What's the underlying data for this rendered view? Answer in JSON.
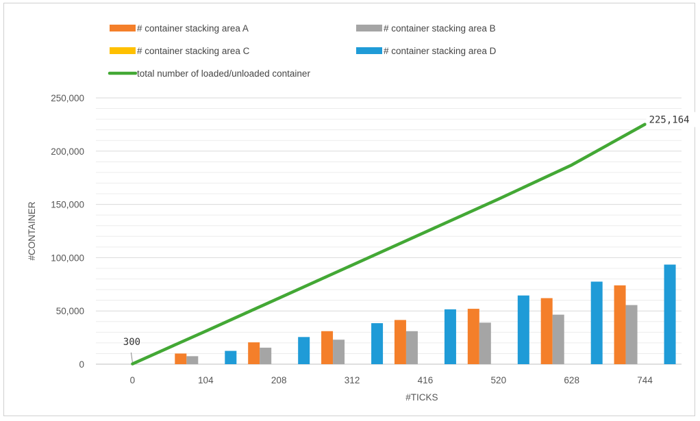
{
  "chart_data": {
    "type": "bar",
    "xlabel": "#TICKS",
    "ylabel": "#CONTAINER",
    "ylim": [
      0,
      250000
    ],
    "ytick_step": 50000,
    "ytick_labels": [
      "0",
      "50,000",
      "100,000",
      "150,000",
      "200,000",
      "250,000"
    ],
    "grid": true,
    "legend_position": "top",
    "categories": [
      "0",
      "104",
      "208",
      "312",
      "416",
      "520",
      "628",
      "744"
    ],
    "series": [
      {
        "name": "# container stacking area A",
        "kind": "bar",
        "color": "#f47f2a",
        "values": [
          0,
          10000,
          20500,
          31000,
          41500,
          52000,
          62000,
          74000
        ]
      },
      {
        "name": "# container stacking area B",
        "kind": "bar",
        "color": "#a5a5a5",
        "values": [
          0,
          7500,
          15500,
          23000,
          31000,
          39000,
          46500,
          55500
        ]
      },
      {
        "name": "# container stacking area C",
        "kind": "bar",
        "color": "#ffc000",
        "values": [
          0,
          0,
          0,
          0,
          0,
          0,
          0,
          0
        ]
      },
      {
        "name": "# container stacking area D",
        "kind": "bar",
        "color": "#1f9bd7",
        "values": [
          0,
          12500,
          25500,
          38500,
          51500,
          64500,
          77500,
          93500
        ]
      },
      {
        "name": "total number of loaded/unloaded container",
        "kind": "line",
        "color": "#43a835",
        "values": [
          300,
          31000,
          62000,
          93000,
          124000,
          155000,
          187000,
          225164
        ]
      }
    ],
    "annotations": [
      {
        "text": "300",
        "category": "0",
        "series": "total number of loaded/unloaded container"
      },
      {
        "text": "225,164",
        "category": "744",
        "series": "total number of loaded/unloaded container"
      }
    ]
  }
}
